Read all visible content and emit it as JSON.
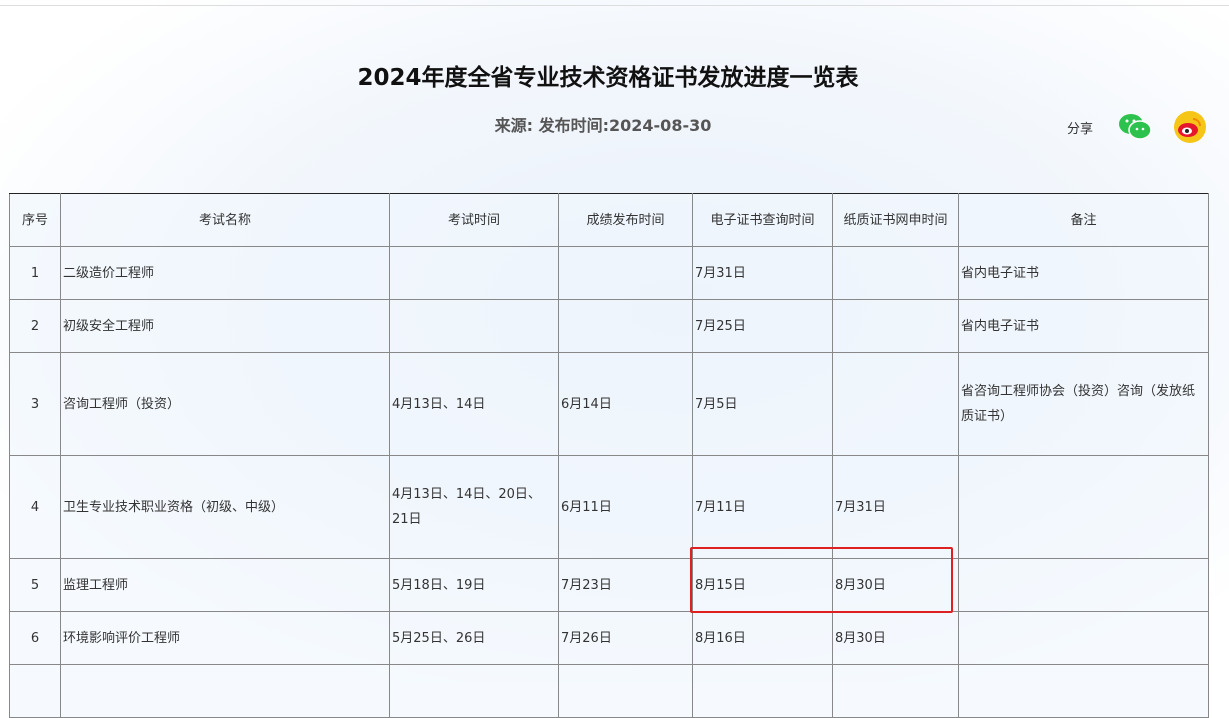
{
  "title": "2024年度全省专业技术资格证书发放进度一览表",
  "meta": "来源:  发布时间:2024-08-30",
  "share": {
    "label": "分享",
    "icons": [
      "wechat-icon",
      "weibo-icon"
    ]
  },
  "table": {
    "headers": [
      "序号",
      "考试名称",
      "考试时间",
      "成绩发布时间",
      "电子证书查询时间",
      "纸质证书网申时间",
      "备注"
    ],
    "rows": [
      [
        "1",
        "二级造价工程师",
        "",
        "",
        "7月31日",
        "",
        "省内电子证书"
      ],
      [
        "2",
        "初级安全工程师",
        "",
        "",
        "7月25日",
        "",
        "省内电子证书"
      ],
      [
        "3",
        "咨询工程师（投资）",
        "4月13日、14日",
        "6月14日",
        "7月5日",
        "",
        "省咨询工程师协会（投资）咨询（发放纸质证书）"
      ],
      [
        "4",
        "卫生专业技术职业资格（初级、中级）",
        "4月13日、14日、20日、21日",
        "6月11日",
        "7月11日",
        "7月31日",
        ""
      ],
      [
        "5",
        "监理工程师",
        "5月18日、19日",
        "7月23日",
        "8月15日",
        "8月30日",
        ""
      ],
      [
        "6",
        "环境影响评价工程师",
        "5月25日、26日",
        "7月26日",
        "8月16日",
        "8月30日",
        ""
      ],
      [
        "",
        "",
        "",
        "",
        "",
        "",
        ""
      ]
    ]
  },
  "highlight_color": "#e02020"
}
